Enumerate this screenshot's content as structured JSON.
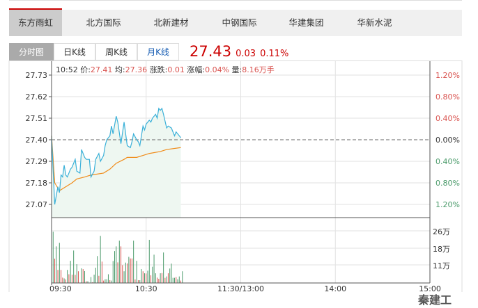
{
  "stock_tabs": [
    "东方雨虹",
    "北方国际",
    "北新建材",
    "中钢国际",
    "华建集团",
    "华新水泥"
  ],
  "chart_tabs": [
    "分时图",
    "日K线",
    "周K线",
    "月K线"
  ],
  "quote": {
    "price": "27.43",
    "change": "0.03",
    "change_pct": "0.11%"
  },
  "info": {
    "time": "10:52",
    "price_label": "价:",
    "price": "27.41",
    "avg_label": "均:",
    "avg": "27.36",
    "chg_label": "涨跌:",
    "chg": "0.01",
    "pct_label": "涨幅:",
    "pct": "0.04%",
    "vol_label": "量:",
    "vol": "8.16万手"
  },
  "watermark": "秦建工",
  "colors": {
    "price_line": "#3ab0d8",
    "avg_line": "#f08c1a",
    "up": "#d9534f",
    "down": "#4a9a6a",
    "fill": "#eef7f1"
  },
  "chart_data": {
    "type": "line",
    "base_price": 27.4,
    "y_ticks_left": [
      "27.73",
      "27.62",
      "27.51",
      "27.40",
      "27.29",
      "27.18",
      "27.07"
    ],
    "y_ticks_right": [
      {
        "t": "1.20%",
        "c": "up"
      },
      {
        "t": "0.80%",
        "c": "up"
      },
      {
        "t": "0.40%",
        "c": "up"
      },
      {
        "t": "0.00%",
        "c": "flat"
      },
      {
        "t": "0.40%",
        "c": "down"
      },
      {
        "t": "0.80%",
        "c": "down"
      },
      {
        "t": "1.20%",
        "c": "down"
      }
    ],
    "ylim": [
      27.07,
      27.73
    ],
    "x_ticks": [
      "09:30",
      "10:30",
      "11:30/13:00",
      "14:00",
      "15:00"
    ],
    "volume_ticks": [
      "26万",
      "18万",
      "11万"
    ],
    "price": [
      [
        "09:30",
        27.42
      ],
      [
        "09:32",
        27.07
      ],
      [
        "09:34",
        27.16
      ],
      [
        "09:35",
        27.13
      ],
      [
        "09:36",
        27.22
      ],
      [
        "09:37",
        27.21
      ],
      [
        "09:38",
        27.27
      ],
      [
        "09:39",
        27.22
      ],
      [
        "09:40",
        27.21
      ],
      [
        "09:42",
        27.25
      ],
      [
        "09:43",
        27.26
      ],
      [
        "09:45",
        27.3
      ],
      [
        "09:46",
        27.24
      ],
      [
        "09:48",
        27.23
      ],
      [
        "09:49",
        27.35
      ],
      [
        "09:51",
        27.31
      ],
      [
        "09:52",
        27.3
      ],
      [
        "09:54",
        27.3
      ],
      [
        "09:55",
        27.21
      ],
      [
        "09:57",
        27.24
      ],
      [
        "09:58",
        27.3
      ],
      [
        "10:00",
        27.33
      ],
      [
        "10:01",
        27.29
      ],
      [
        "10:03",
        27.32
      ],
      [
        "10:04",
        27.37
      ],
      [
        "10:05",
        27.4
      ],
      [
        "10:07",
        27.42
      ],
      [
        "10:08",
        27.47
      ],
      [
        "10:09",
        27.43
      ],
      [
        "10:11",
        27.52
      ],
      [
        "10:12",
        27.49
      ],
      [
        "10:14",
        27.38
      ],
      [
        "10:16",
        27.49
      ],
      [
        "10:18",
        27.37
      ],
      [
        "10:20",
        27.36
      ],
      [
        "10:21",
        27.39
      ],
      [
        "10:22",
        27.43
      ],
      [
        "10:24",
        27.4
      ],
      [
        "10:25",
        27.39
      ],
      [
        "10:26",
        27.37
      ],
      [
        "10:28",
        27.47
      ],
      [
        "10:29",
        27.45
      ],
      [
        "10:30",
        27.48
      ],
      [
        "10:32",
        27.5
      ],
      [
        "10:33",
        27.49
      ],
      [
        "10:34",
        27.51
      ],
      [
        "10:36",
        27.53
      ],
      [
        "10:37",
        27.51
      ],
      [
        "10:38",
        27.56
      ],
      [
        "10:39",
        27.55
      ],
      [
        "10:40",
        27.56
      ],
      [
        "10:41",
        27.53
      ],
      [
        "10:43",
        27.46
      ],
      [
        "10:44",
        27.47
      ],
      [
        "10:46",
        27.46
      ],
      [
        "10:48",
        27.42
      ],
      [
        "10:49",
        27.44
      ],
      [
        "10:50",
        27.43
      ],
      [
        "10:52",
        27.41
      ]
    ],
    "avg": [
      [
        "09:30",
        27.42
      ],
      [
        "09:32",
        27.18
      ],
      [
        "09:35",
        27.14
      ],
      [
        "09:39",
        27.16
      ],
      [
        "09:43",
        27.18
      ],
      [
        "09:46",
        27.2
      ],
      [
        "09:51",
        27.21
      ],
      [
        "09:55",
        27.22
      ],
      [
        "10:03",
        27.23
      ],
      [
        "10:07",
        27.25
      ],
      [
        "10:11",
        27.28
      ],
      [
        "10:16",
        27.3
      ],
      [
        "10:18",
        27.31
      ],
      [
        "10:24",
        27.31
      ],
      [
        "10:28",
        27.32
      ],
      [
        "10:32",
        27.33
      ],
      [
        "10:39",
        27.34
      ],
      [
        "10:43",
        27.35
      ],
      [
        "10:52",
        27.36
      ]
    ],
    "volume_unit": "万",
    "volume": [
      [
        "09:31",
        25.9,
        "d"
      ],
      [
        "09:32",
        12.3,
        "u"
      ],
      [
        "09:33",
        18.5,
        "d"
      ],
      [
        "09:34",
        6.6,
        "u"
      ],
      [
        "09:35",
        20.3,
        "d"
      ],
      [
        "09:36",
        6.6,
        "u"
      ],
      [
        "09:37",
        2.7,
        "u"
      ],
      [
        "09:38",
        2.3,
        "d"
      ],
      [
        "09:39",
        1.8,
        "u"
      ],
      [
        "09:40",
        6.6,
        "d"
      ],
      [
        "09:41",
        4.4,
        "u"
      ],
      [
        "09:42",
        11.2,
        "d"
      ],
      [
        "09:43",
        4.2,
        "u"
      ],
      [
        "09:44",
        16.4,
        "d"
      ],
      [
        "09:45",
        4.1,
        "u"
      ],
      [
        "09:46",
        9.5,
        "d"
      ],
      [
        "09:47",
        5.9,
        "u"
      ],
      [
        "09:49",
        7.4,
        "d"
      ],
      [
        "09:50",
        7.0,
        "u"
      ],
      [
        "09:51",
        6.0,
        "d"
      ],
      [
        "09:52",
        0.9,
        "u"
      ],
      [
        "09:53",
        0.9,
        "d"
      ],
      [
        "09:55",
        3.0,
        "d"
      ],
      [
        "09:56",
        0.4,
        "u"
      ],
      [
        "09:57",
        4.2,
        "d"
      ],
      [
        "09:58",
        7.7,
        "d"
      ],
      [
        "09:59",
        13.6,
        "d"
      ],
      [
        "10:00",
        3.6,
        "u"
      ],
      [
        "10:01",
        23.8,
        "d"
      ],
      [
        "10:02",
        10.8,
        "u"
      ],
      [
        "10:03",
        1.2,
        "u"
      ],
      [
        "10:04",
        1.9,
        "d"
      ],
      [
        "10:05",
        1.9,
        "d"
      ],
      [
        "10:06",
        4.4,
        "d"
      ],
      [
        "10:07",
        1.4,
        "u"
      ],
      [
        "10:08",
        1.2,
        "d"
      ],
      [
        "10:09",
        11.1,
        "d"
      ],
      [
        "10:10",
        16.1,
        "d"
      ],
      [
        "10:11",
        18.5,
        "d"
      ],
      [
        "10:12",
        10.4,
        "u"
      ],
      [
        "10:13",
        21.4,
        "d"
      ],
      [
        "10:14",
        18.5,
        "u"
      ],
      [
        "10:15",
        9.0,
        "u"
      ],
      [
        "10:16",
        5.9,
        "d"
      ],
      [
        "10:17",
        10.3,
        "d"
      ],
      [
        "10:18",
        9.9,
        "u"
      ],
      [
        "10:19",
        13.2,
        "d"
      ],
      [
        "10:20",
        12.4,
        "u"
      ],
      [
        "10:21",
        12.4,
        "u"
      ],
      [
        "10:22",
        21.4,
        "d"
      ],
      [
        "10:23",
        1.8,
        "u"
      ],
      [
        "10:24",
        11.2,
        "d"
      ],
      [
        "10:25",
        1.4,
        "u"
      ],
      [
        "10:26",
        1.4,
        "d"
      ],
      [
        "10:27",
        7.0,
        "d"
      ],
      [
        "10:28",
        5.9,
        "u"
      ],
      [
        "10:29",
        4.9,
        "d"
      ],
      [
        "10:30",
        4.8,
        "u"
      ],
      [
        "10:31",
        6.2,
        "d"
      ],
      [
        "10:32",
        21.8,
        "d"
      ],
      [
        "10:33",
        3.9,
        "u"
      ],
      [
        "10:34",
        8.2,
        "d"
      ],
      [
        "10:35",
        14.3,
        "d"
      ],
      [
        "10:36",
        4.9,
        "d"
      ],
      [
        "10:37",
        2.7,
        "u"
      ],
      [
        "10:38",
        2.1,
        "u"
      ],
      [
        "10:39",
        4.9,
        "d"
      ],
      [
        "10:40",
        5.0,
        "u"
      ],
      [
        "10:41",
        15.4,
        "d"
      ],
      [
        "10:42",
        2.6,
        "u"
      ],
      [
        "10:43",
        3.3,
        "d"
      ],
      [
        "10:44",
        4.9,
        "u"
      ],
      [
        "10:45",
        7.3,
        "d"
      ],
      [
        "10:46",
        9.8,
        "d"
      ],
      [
        "10:47",
        2.6,
        "d"
      ],
      [
        "10:48",
        2.6,
        "d"
      ],
      [
        "10:49",
        3.0,
        "u"
      ],
      [
        "10:50",
        1.9,
        "d"
      ],
      [
        "10:51",
        3.3,
        "d"
      ],
      [
        "10:52",
        1.2,
        "u"
      ],
      [
        "10:53",
        5.9,
        "d"
      ]
    ]
  }
}
